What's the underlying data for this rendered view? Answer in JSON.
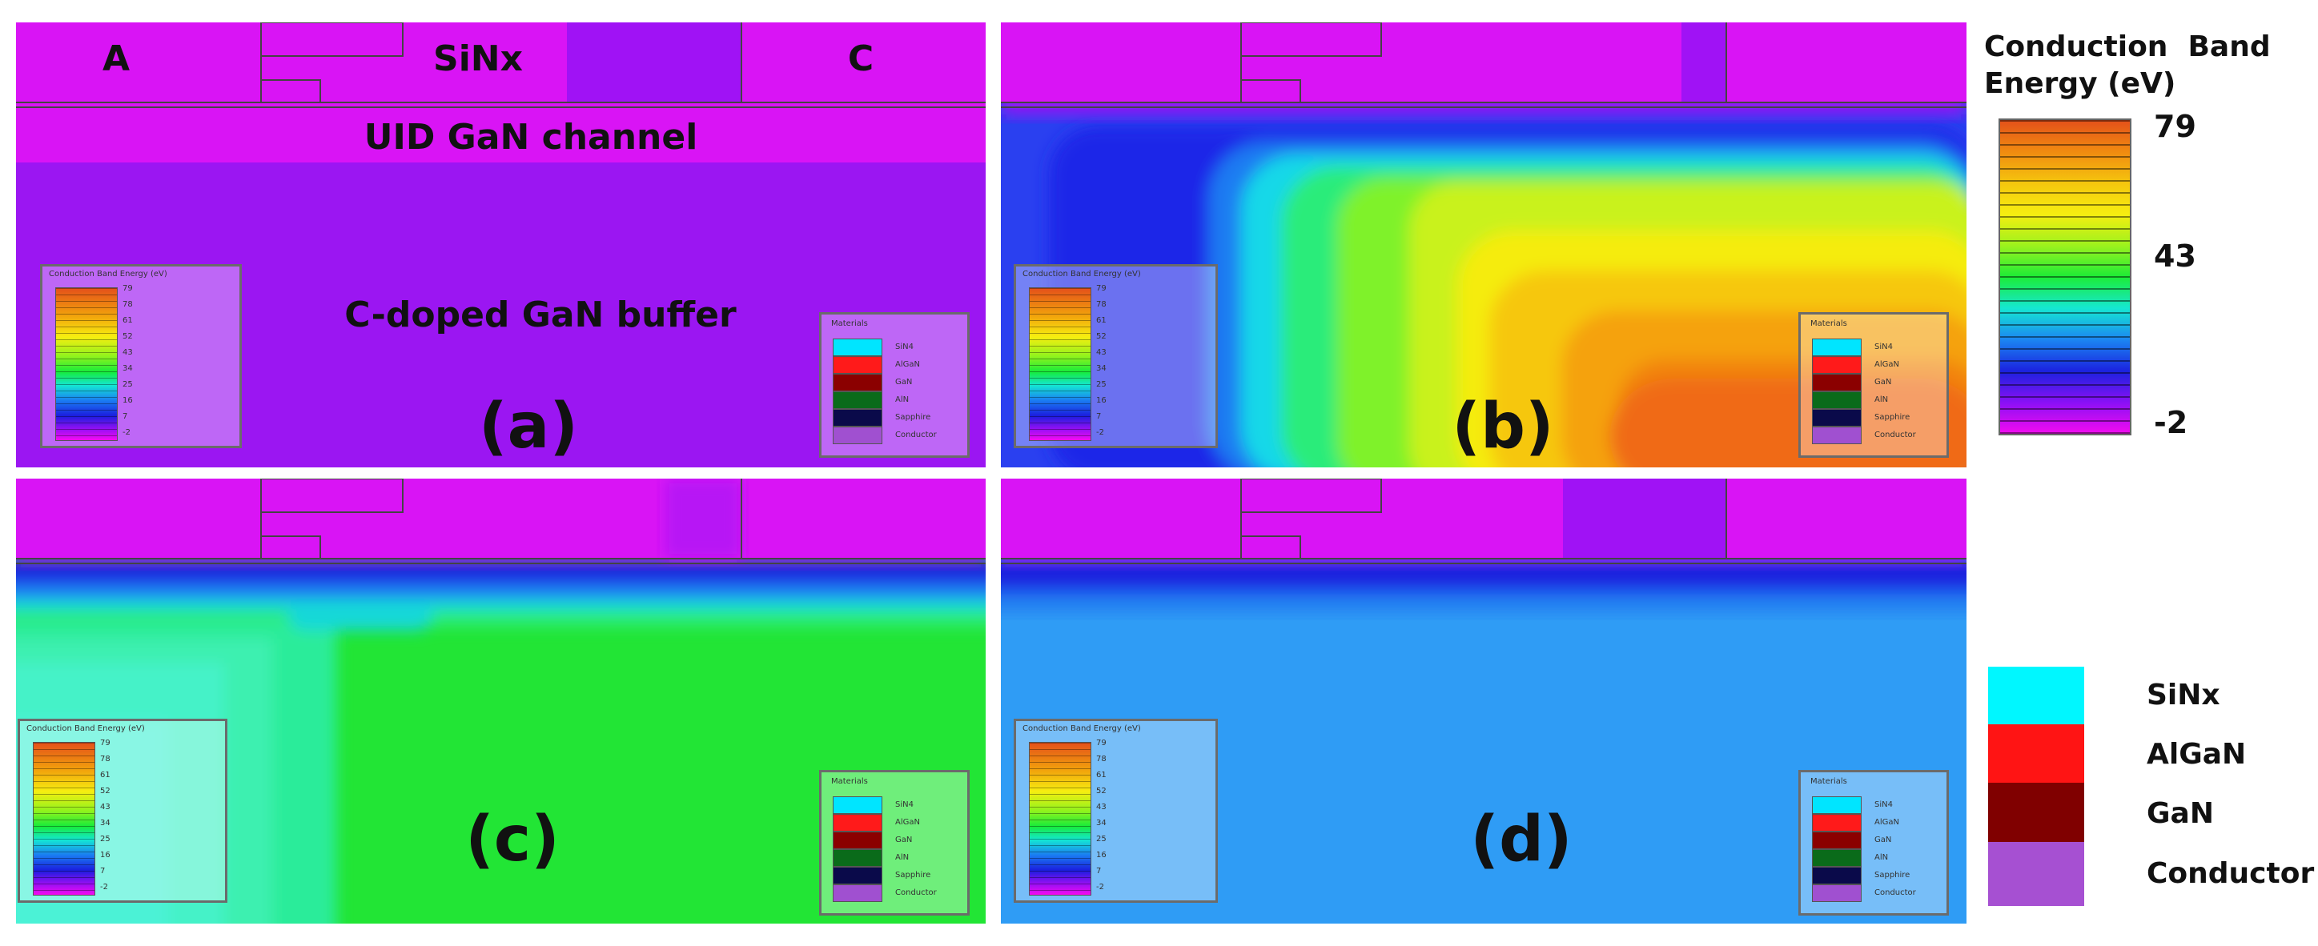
{
  "panels": [
    {
      "id": "a",
      "label": "(a)"
    },
    {
      "id": "b",
      "label": "(b)"
    },
    {
      "id": "c",
      "label": "(c)"
    },
    {
      "id": "d",
      "label": "(d)"
    }
  ],
  "region_labels": {
    "anode": "A",
    "passivation": "SiNx",
    "cathode": "C",
    "channel": "UID GaN channel",
    "buffer": "C-doped GaN buffer"
  },
  "inset_colorbar": {
    "title": "Conduction Band Energy (eV)",
    "ticks": [
      "79",
      "78",
      "61",
      "52",
      "43",
      "34",
      "25",
      "16",
      "7",
      "-2"
    ]
  },
  "inset_materials": {
    "title": "Materials",
    "items": [
      {
        "name": "SiN4",
        "color": "#00e5ff"
      },
      {
        "name": "AlGaN",
        "color": "#ff1a1a"
      },
      {
        "name": "GaN",
        "color": "#8b0000"
      },
      {
        "name": "AlN",
        "color": "#0a6b1a"
      },
      {
        "name": "Sapphire",
        "color": "#0a0a4a"
      },
      {
        "name": "Conductor",
        "color": "#a050d0"
      }
    ]
  },
  "colorbar": {
    "title": "Conduction  Band\nEnergy (eV)",
    "ticks": [
      "79",
      "43",
      "-2"
    ]
  },
  "legend": [
    {
      "name": "SiNx",
      "color": "#00f7ff"
    },
    {
      "name": "AlGaN",
      "color": "#ff1414"
    },
    {
      "name": "GaN",
      "color": "#800000"
    },
    {
      "name": "Conductor",
      "color": "#a650d2"
    }
  ],
  "colors": {
    "top_layer": "#d914f5",
    "buffer_a": "#9b16f2",
    "buffer_d": "#2f9cf5",
    "buffer_c": "#1be81f",
    "conductor": "#a012f5"
  }
}
